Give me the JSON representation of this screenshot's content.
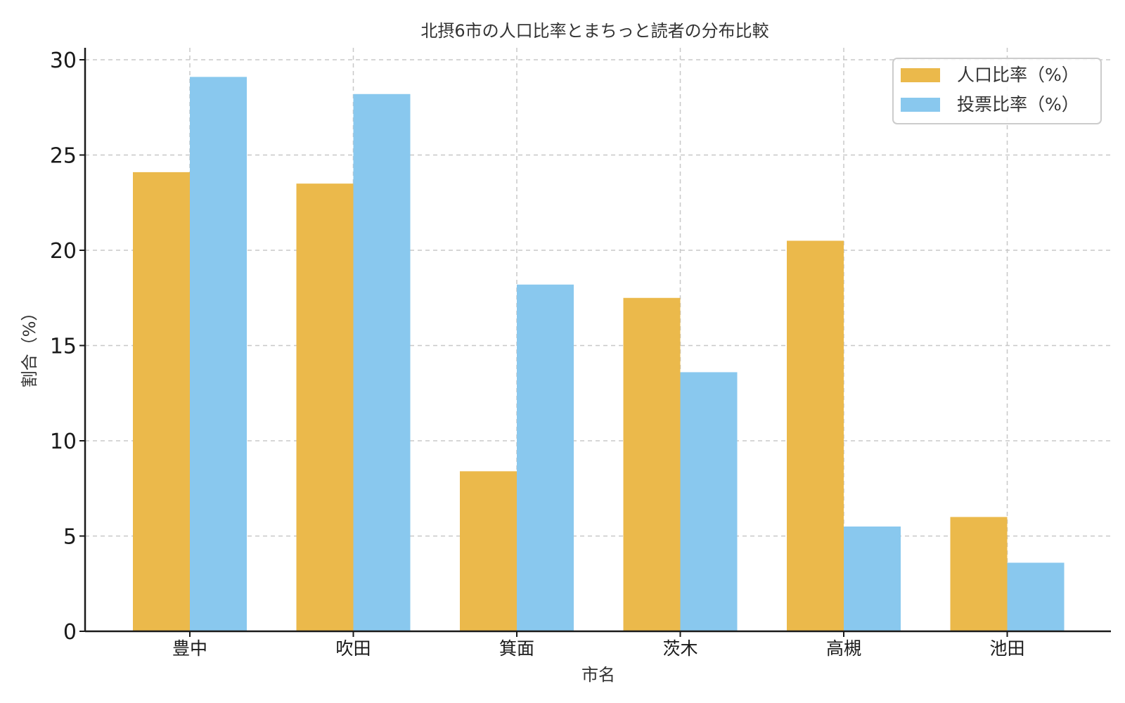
{
  "chart_data": {
    "type": "bar",
    "title": "北摂6市の人口比率とまちっと読者の分布比較",
    "xlabel": "市名",
    "ylabel": "割合（%）",
    "categories": [
      "豊中",
      "吹田",
      "箕面",
      "茨木",
      "高槻",
      "池田"
    ],
    "series": [
      {
        "name": "人口比率（%）",
        "color": "#EBB94B",
        "values": [
          24.1,
          23.5,
          8.4,
          17.5,
          20.5,
          6.0
        ]
      },
      {
        "name": "投票比率（%）",
        "color": "#89C8EE",
        "values": [
          29.1,
          28.2,
          18.2,
          13.6,
          5.5,
          3.6
        ]
      }
    ],
    "ylim": [
      0,
      30
    ],
    "yticks": [
      0,
      5,
      10,
      15,
      20,
      25,
      30
    ],
    "grid": true,
    "legend_position": "top-right"
  }
}
